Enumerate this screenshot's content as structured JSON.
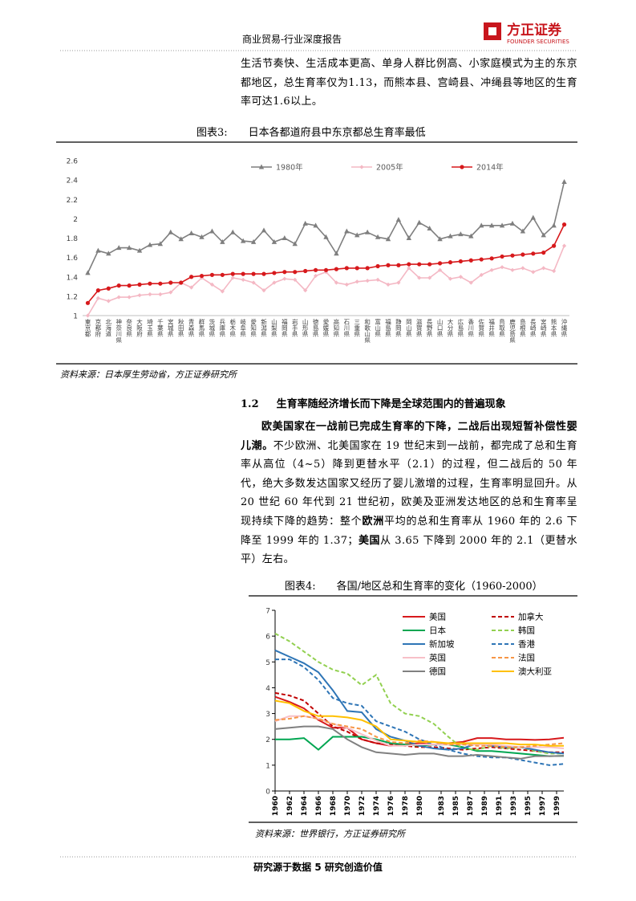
{
  "header": {
    "report": "商业贸易-行业深度报告",
    "logo_cn": "方正证券",
    "logo_en": "FOUNDER SECURITIES"
  },
  "intro": "生活节奏快、生活成本更高、单身人群比例高、小家庭模式为主的东京都地区，总生育率仅为1.13，而熊本县、宫崎县、冲绳县等地区的生育率可达1.6以上。",
  "figure_3": {
    "label": "图表3:",
    "caption": "日本各都道府县中东京都总生育率最低",
    "source": "资料来源：日本厚生劳动省，方正证券研究所"
  },
  "section": {
    "number": "1.2",
    "title": "生育率随经济增长而下降是全球范围内的普遍现象"
  },
  "paragraph": [
    {
      "text": "欧美国家在一战前已完成生育率的下降，二战后出现短暂补偿性婴儿潮。",
      "bold": true
    },
    {
      "text": "不少欧洲、北美国家在 19 世纪末到一战前，都完成了总和生育率从高位（4~5）降到更替水平（2.1）的过程，但二战后的 50 年代，绝大多数发达国家又经历了婴儿激增的过程，生育率明显回升。从 20 世纪 60 年代到 21 世纪初，欧美及亚洲发达地区的总和生育率呈现持续下降的趋势：整个",
      "bold": false
    },
    {
      "text": "欧洲",
      "bold": true
    },
    {
      "text": "平均的总和生育率从 1960 年的 2.6 下降至 1999 年的 1.37；",
      "bold": false
    },
    {
      "text": "美国",
      "bold": true
    },
    {
      "text": "从 3.65 下降到 2000 年的 2.1（更替水平）左右。",
      "bold": false
    }
  ],
  "figure_4": {
    "label": "图表4:",
    "caption": "各国/地区总和生育率的变化（1960-2000）",
    "source": "资料来源：世界银行，方正证券研究所"
  },
  "footer": "研究源于数据 5 研究创造价值",
  "chart_data": [
    {
      "type": "line",
      "categories": [
        "東京都",
        "京都府",
        "北海道",
        "神奈川県",
        "奈良県",
        "大阪府",
        "埼玉県",
        "千葉県",
        "宮城県",
        "秋田県",
        "青森県",
        "群馬県",
        "茨城県",
        "兵庫県",
        "栃木県",
        "岐阜県",
        "愛知県",
        "新潟県",
        "山梨県",
        "福岡県",
        "岩手県",
        "山形県",
        "徳島県",
        "愛媛県",
        "高知県",
        "石川県",
        "三重県",
        "和歌山県",
        "富山県",
        "福島県",
        "静岡県",
        "岡山県",
        "滋賀県",
        "長野県",
        "山口県",
        "大分県",
        "広島県",
        "香川県",
        "佐賀県",
        "福井県",
        "鳥取県",
        "鹿児島県",
        "島根県",
        "長崎県",
        "宮崎県",
        "熊本県",
        "沖縄県"
      ],
      "series": [
        {
          "name": "1980年",
          "color": "#7f7f7f",
          "marker": "triangle",
          "values": [
            1.44,
            1.67,
            1.64,
            1.7,
            1.7,
            1.67,
            1.73,
            1.74,
            1.86,
            1.79,
            1.85,
            1.81,
            1.87,
            1.76,
            1.86,
            1.77,
            1.76,
            1.88,
            1.76,
            1.8,
            1.74,
            1.95,
            1.93,
            1.81,
            1.64,
            1.87,
            1.83,
            1.86,
            1.81,
            1.79,
            1.99,
            1.8,
            1.96,
            1.9,
            1.79,
            1.82,
            1.84,
            1.82,
            1.93,
            1.93,
            1.93,
            1.95,
            1.87,
            2.01,
            1.83,
            1.93,
            2.38
          ]
        },
        {
          "name": "2005年",
          "color": "#f4b8c4",
          "marker": "diamond",
          "values": [
            1.0,
            1.18,
            1.15,
            1.19,
            1.19,
            1.21,
            1.22,
            1.22,
            1.24,
            1.34,
            1.29,
            1.39,
            1.32,
            1.25,
            1.39,
            1.37,
            1.34,
            1.26,
            1.34,
            1.38,
            1.37,
            1.26,
            1.41,
            1.45,
            1.34,
            1.32,
            1.35,
            1.36,
            1.37,
            1.32,
            1.34,
            1.49,
            1.39,
            1.39,
            1.47,
            1.38,
            1.4,
            1.34,
            1.42,
            1.47,
            1.5,
            1.47,
            1.49,
            1.45,
            1.49,
            1.46,
            1.72
          ]
        },
        {
          "name": "2014年",
          "color": "#d7191c",
          "marker": "circle",
          "values": [
            1.13,
            1.26,
            1.28,
            1.31,
            1.31,
            1.32,
            1.33,
            1.33,
            1.34,
            1.34,
            1.4,
            1.41,
            1.42,
            1.42,
            1.43,
            1.43,
            1.43,
            1.43,
            1.44,
            1.45,
            1.45,
            1.46,
            1.47,
            1.47,
            1.48,
            1.49,
            1.49,
            1.49,
            1.51,
            1.52,
            1.52,
            1.53,
            1.53,
            1.53,
            1.54,
            1.55,
            1.56,
            1.57,
            1.58,
            1.59,
            1.61,
            1.62,
            1.63,
            1.64,
            1.65,
            1.72,
            1.94
          ]
        }
      ],
      "ylim": [
        1,
        2.6
      ],
      "yticks": [
        1,
        1.2,
        1.4,
        1.6,
        1.8,
        2,
        2.2,
        2.4,
        2.6
      ],
      "grid": false,
      "legend": "top"
    },
    {
      "type": "line",
      "x": [
        1960,
        1962,
        1964,
        1966,
        1968,
        1970,
        1972,
        1974,
        1976,
        1978,
        1980,
        1982,
        1984,
        1986,
        1988,
        1990,
        1992,
        1994,
        1996,
        1998,
        2000
      ],
      "series": [
        {
          "name": "美国",
          "color": "#d7191c",
          "dash": false,
          "values": [
            3.65,
            3.45,
            3.2,
            2.75,
            2.45,
            2.45,
            2.0,
            1.85,
            1.75,
            1.8,
            1.85,
            1.8,
            1.85,
            1.9,
            2.05,
            2.05,
            2.0,
            2.0,
            1.98,
            2.0,
            2.06
          ]
        },
        {
          "name": "加拿大",
          "color": "#c00000",
          "dash": true,
          "values": [
            3.8,
            3.7,
            3.5,
            3.0,
            2.5,
            2.3,
            2.0,
            1.85,
            1.8,
            1.75,
            1.7,
            1.7,
            1.65,
            1.6,
            1.65,
            1.7,
            1.65,
            1.6,
            1.55,
            1.5,
            1.5
          ]
        },
        {
          "name": "日本",
          "color": "#00a651",
          "dash": false,
          "values": [
            2.0,
            2.0,
            2.05,
            1.6,
            2.1,
            2.1,
            2.1,
            2.0,
            1.85,
            1.8,
            1.75,
            1.8,
            1.8,
            1.7,
            1.55,
            1.55,
            1.5,
            1.45,
            1.4,
            1.35,
            1.36
          ]
        },
        {
          "name": "韩国",
          "color": "#92d050",
          "dash": true,
          "values": [
            6.1,
            5.8,
            5.4,
            5.0,
            4.7,
            4.55,
            4.1,
            4.5,
            3.4,
            3.0,
            2.9,
            2.6,
            2.1,
            1.65,
            1.6,
            1.75,
            1.65,
            1.7,
            1.55,
            1.45,
            1.45
          ]
        },
        {
          "name": "新加坡",
          "color": "#2e75b6",
          "dash": false,
          "values": [
            5.45,
            5.2,
            4.95,
            4.6,
            3.9,
            3.1,
            3.05,
            2.4,
            2.1,
            1.95,
            1.75,
            1.65,
            1.6,
            1.65,
            1.85,
            1.75,
            1.7,
            1.7,
            1.6,
            1.5,
            1.45
          ]
        },
        {
          "name": "香港",
          "color": "#2e75b6",
          "dash": true,
          "values": [
            5.1,
            5.1,
            4.8,
            4.3,
            3.6,
            3.4,
            3.3,
            2.7,
            2.5,
            2.3,
            2.0,
            1.8,
            1.6,
            1.45,
            1.35,
            1.3,
            1.3,
            1.2,
            1.1,
            1.0,
            1.05
          ]
        },
        {
          "name": "英国",
          "color": "#f8c0c8",
          "dash": false,
          "values": [
            2.7,
            2.9,
            2.9,
            2.8,
            2.6,
            2.45,
            2.2,
            1.95,
            1.75,
            1.75,
            1.8,
            1.8,
            1.8,
            1.8,
            1.8,
            1.8,
            1.75,
            1.7,
            1.7,
            1.7,
            1.65
          ]
        },
        {
          "name": "法国",
          "color": "#f79646",
          "dash": true,
          "values": [
            2.75,
            2.8,
            2.9,
            2.8,
            2.6,
            2.5,
            2.4,
            2.1,
            1.9,
            1.85,
            1.95,
            1.9,
            1.8,
            1.8,
            1.75,
            1.75,
            1.7,
            1.7,
            1.75,
            1.8,
            1.85
          ]
        },
        {
          "name": "德国",
          "color": "#808080",
          "dash": false,
          "values": [
            2.4,
            2.45,
            2.5,
            2.5,
            2.4,
            2.0,
            1.7,
            1.5,
            1.45,
            1.4,
            1.45,
            1.45,
            1.35,
            1.35,
            1.4,
            1.35,
            1.3,
            1.25,
            1.35,
            1.35,
            1.36
          ]
        },
        {
          "name": "澳大利亚",
          "color": "#ffc000",
          "dash": false,
          "values": [
            3.5,
            3.4,
            3.1,
            2.9,
            2.9,
            2.85,
            2.75,
            2.5,
            2.0,
            1.95,
            1.9,
            1.9,
            1.85,
            1.85,
            1.85,
            1.85,
            1.85,
            1.8,
            1.8,
            1.75,
            1.75
          ]
        }
      ],
      "xlim": [
        1960,
        2000
      ],
      "xticks": [
        1960,
        1962,
        1964,
        1966,
        1968,
        1970,
        1972,
        1974,
        1976,
        1978,
        1980,
        1983,
        1985,
        1987,
        1989,
        1991,
        1993,
        1995,
        1997,
        1999
      ],
      "ylim": [
        0,
        7
      ],
      "yticks": [
        0,
        1,
        2,
        3,
        4,
        5,
        6,
        7
      ],
      "grid": false,
      "legend": "top-right"
    }
  ]
}
